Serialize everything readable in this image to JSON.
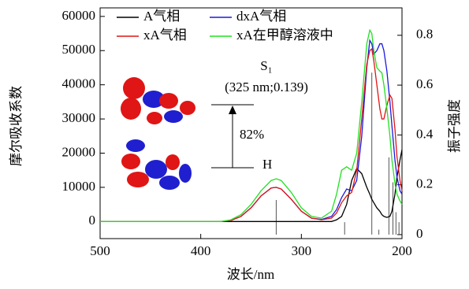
{
  "chart_data": {
    "type": "line",
    "x_label": "波长/nm",
    "y_label": "摩尔吸收系数",
    "y2_label": "振子强度",
    "xlim": [
      500,
      200
    ],
    "xticks": [
      500,
      400,
      300,
      200
    ],
    "ylim": [
      -5000,
      62500
    ],
    "yticks": [
      0,
      10000,
      20000,
      30000,
      40000,
      50000,
      60000
    ],
    "y2lim": [
      -0.016,
      0.91
    ],
    "y2ticks": [
      0,
      0.2,
      0.4,
      0.6,
      0.8
    ],
    "x": [
      500,
      450,
      400,
      380,
      370,
      360,
      350,
      340,
      330,
      325,
      320,
      310,
      300,
      290,
      280,
      270,
      265,
      260,
      255,
      250,
      245,
      240,
      235,
      232,
      230,
      228,
      225,
      222,
      220,
      218,
      215,
      212,
      210,
      207,
      205,
      202,
      200
    ],
    "series": [
      {
        "name": "A气相",
        "color": "#000000",
        "values": [
          0,
          0,
          0,
          0,
          0,
          0,
          0,
          0,
          0,
          0,
          0,
          0,
          0,
          0,
          0,
          0,
          500,
          1500,
          5000,
          12000,
          15500,
          14000,
          10000,
          8000,
          6500,
          5500,
          4000,
          3000,
          2000,
          1500,
          1200,
          1500,
          3000,
          8000,
          13000,
          18000,
          21000
        ]
      },
      {
        "name": "dxA气相",
        "color": "#1a1adf",
        "values": [
          0,
          0,
          0,
          0,
          300,
          1500,
          4000,
          7500,
          9800,
          10000,
          9500,
          6500,
          3000,
          1000,
          600,
          1500,
          3500,
          7000,
          9500,
          9000,
          12000,
          25000,
          45000,
          53000,
          52000,
          49000,
          50000,
          52000,
          52000,
          50000,
          44000,
          35000,
          28000,
          18000,
          13000,
          9000,
          8000
        ]
      },
      {
        "name": "xA气相",
        "color": "#e01515",
        "values": [
          0,
          0,
          0,
          0,
          300,
          1500,
          4000,
          7500,
          9800,
          10000,
          9500,
          6500,
          3000,
          1000,
          500,
          1000,
          2500,
          5500,
          7500,
          8500,
          15000,
          30000,
          46000,
          50000,
          50500,
          47000,
          40000,
          33000,
          30000,
          30000,
          34000,
          37000,
          36000,
          27000,
          19000,
          12000,
          9000
        ]
      },
      {
        "name": "xA在甲醇溶液中",
        "color": "#22e022",
        "values": [
          0,
          0,
          0,
          0,
          500,
          2000,
          5000,
          9000,
          12000,
          12500,
          12000,
          8500,
          4000,
          1500,
          1000,
          3000,
          8000,
          15000,
          16000,
          15000,
          20000,
          35000,
          52000,
          56000,
          55000,
          50000,
          45000,
          44000,
          43500,
          40000,
          33000,
          25000,
          18000,
          11000,
          8000,
          6000,
          5000
        ]
      }
    ],
    "sticks": {
      "color": "#555555",
      "x": [
        325,
        257,
        230,
        223,
        213,
        209,
        206,
        203
      ],
      "values": [
        0.139,
        0.05,
        0.65,
        0.02,
        0.31,
        0.21,
        0.09,
        0.05
      ]
    },
    "annotations": [
      "S₁",
      "(325 nm;0.139)",
      "82%",
      "H"
    ]
  }
}
